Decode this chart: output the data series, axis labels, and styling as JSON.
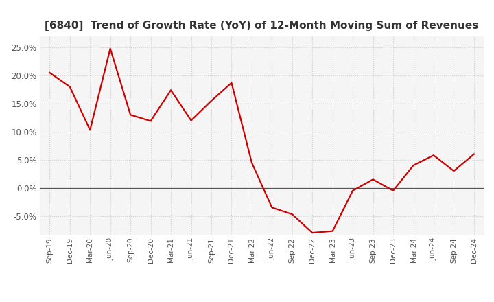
{
  "title": "[6840]  Trend of Growth Rate (YoY) of 12-Month Moving Sum of Revenues",
  "title_fontsize": 11,
  "title_color": "#333333",
  "line_color": "#cc0000",
  "background_color": "#ffffff",
  "plot_bg_color": "#f5f5f5",
  "grid_color": "#cccccc",
  "zero_line_color": "#555555",
  "x_labels": [
    "Sep-19",
    "Dec-19",
    "Mar-20",
    "Jun-20",
    "Sep-20",
    "Dec-20",
    "Mar-21",
    "Jun-21",
    "Sep-21",
    "Dec-21",
    "Mar-22",
    "Jun-22",
    "Sep-22",
    "Dec-22",
    "Mar-23",
    "Jun-23",
    "Sep-23",
    "Dec-23",
    "Mar-24",
    "Jun-24",
    "Sep-24",
    "Dec-24"
  ],
  "y_values": [
    0.205,
    0.18,
    0.103,
    0.248,
    0.13,
    0.119,
    0.174,
    0.12,
    0.155,
    0.187,
    0.045,
    -0.035,
    -0.047,
    -0.08,
    -0.077,
    -0.005,
    0.015,
    -0.005,
    0.04,
    0.058,
    0.03,
    0.06
  ],
  "ylim": [
    -0.085,
    0.27
  ],
  "yticks": [
    -0.05,
    0.0,
    0.05,
    0.1,
    0.15,
    0.2,
    0.25
  ],
  "figsize": [
    7.2,
    4.4
  ],
  "dpi": 100
}
